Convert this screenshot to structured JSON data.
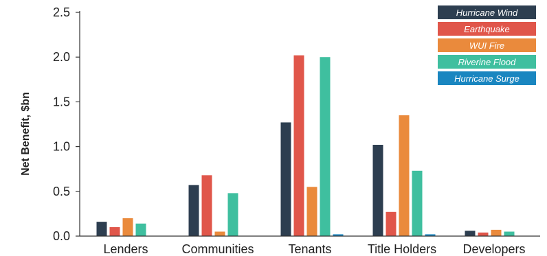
{
  "chart_data": {
    "type": "bar",
    "title": "",
    "xlabel": "",
    "ylabel": "Net Benefit, $bn",
    "ylim": [
      0,
      2.5
    ],
    "yticks": [
      "0.0",
      "0.5",
      "1.0",
      "1.5",
      "2.0",
      "2.5"
    ],
    "categories": [
      "Lenders",
      "Communities",
      "Tenants",
      "Title Holders",
      "Developers"
    ],
    "legend_position": "top-right",
    "grid": false,
    "series": [
      {
        "name": "Hurricane Wind",
        "color": "#2d3e50",
        "values": [
          0.16,
          0.57,
          1.27,
          1.02,
          0.06
        ]
      },
      {
        "name": "Earthquake",
        "color": "#e0564a",
        "values": [
          0.1,
          0.68,
          2.02,
          0.27,
          0.04
        ]
      },
      {
        "name": "WUI Fire",
        "color": "#ea8a3c",
        "values": [
          0.2,
          0.05,
          0.55,
          1.35,
          0.07
        ]
      },
      {
        "name": "Riverine Flood",
        "color": "#3fbf9f",
        "values": [
          0.14,
          0.48,
          2.0,
          0.73,
          0.05
        ]
      },
      {
        "name": "Hurricane Surge",
        "color": "#1a86c0",
        "values": [
          0.0,
          0.0,
          0.02,
          0.02,
          0.0
        ]
      }
    ]
  }
}
